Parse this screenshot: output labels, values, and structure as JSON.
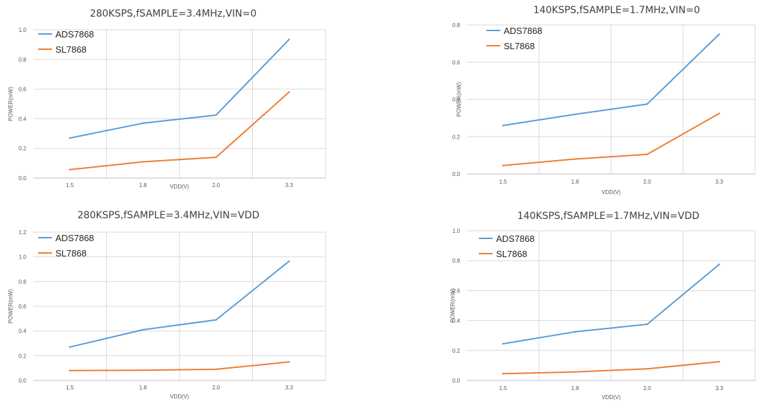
{
  "chart_data": [
    {
      "type": "line",
      "title": "280KSPS,fSAMPLE=3.4MHz,VIN=0",
      "xlabel": "VDD(V)",
      "ylabel": "POWER(mW)",
      "categories": [
        "1.5",
        "1.8",
        "2.0",
        "3.3"
      ],
      "ylim": [
        0,
        1.0
      ],
      "yticks": [
        "0.0",
        "0.2",
        "0.4",
        "0.6",
        "0.8",
        "1.0"
      ],
      "grid": true,
      "legend": "top-left",
      "series": [
        {
          "name": "ADS7868",
          "color": "#5B9BD5",
          "values": [
            0.27,
            0.37,
            0.425,
            0.935
          ]
        },
        {
          "name": "SL7868",
          "color": "#ED7D31",
          "values": [
            0.057,
            0.11,
            0.14,
            0.58
          ]
        }
      ]
    },
    {
      "type": "line",
      "title": "140KSPS,fSAMPLE=1.7MHz,VIN=0",
      "xlabel": "VDD(V)",
      "ylabel": "POWER(mW)",
      "categories": [
        "1.5",
        "1.8",
        "2.0",
        "3.3"
      ],
      "ylim": [
        0,
        0.8
      ],
      "yticks": [
        "0.0",
        "0.2",
        "0.4",
        "0.6",
        "0.8"
      ],
      "grid": true,
      "legend": "top-left",
      "series": [
        {
          "name": "ADS7868",
          "color": "#5B9BD5",
          "values": [
            0.26,
            0.32,
            0.375,
            0.75
          ]
        },
        {
          "name": "SL7868",
          "color": "#ED7D31",
          "values": [
            0.045,
            0.08,
            0.105,
            0.325
          ]
        }
      ]
    },
    {
      "type": "line",
      "title": "280KSPS,fSAMPLE=3.4MHz,VIN=VDD",
      "xlabel": "VDD(V)",
      "ylabel": "POWER(mW)",
      "categories": [
        "1.5",
        "1.8",
        "2.0",
        "3.3"
      ],
      "ylim": [
        0,
        1.2
      ],
      "yticks": [
        "0.0",
        "0.2",
        "0.4",
        "0.6",
        "0.8",
        "1.0",
        "1.2"
      ],
      "grid": true,
      "legend": "top-left",
      "series": [
        {
          "name": "ADS7868",
          "color": "#5B9BD5",
          "values": [
            0.27,
            0.41,
            0.49,
            0.965
          ]
        },
        {
          "name": "SL7868",
          "color": "#ED7D31",
          "values": [
            0.08,
            0.083,
            0.09,
            0.15
          ]
        }
      ]
    },
    {
      "type": "line",
      "title": "140KSPS,fSAMPLE=1.7MHz,VIN=VDD",
      "xlabel": "VDD(V)",
      "ylabel": "POWER(mW)",
      "categories": [
        "1.5",
        "1.8",
        "2.0",
        "3.3"
      ],
      "ylim": [
        0,
        1.0
      ],
      "yticks": [
        "0.0",
        "0.2",
        "0.4",
        "0.6",
        "0.8",
        "1.0"
      ],
      "grid": true,
      "legend": "top-left",
      "series": [
        {
          "name": "ADS7868",
          "color": "#5B9BD5",
          "values": [
            0.245,
            0.325,
            0.375,
            0.775
          ]
        },
        {
          "name": "SL7868",
          "color": "#ED7D31",
          "values": [
            0.045,
            0.057,
            0.078,
            0.125
          ]
        }
      ]
    }
  ]
}
